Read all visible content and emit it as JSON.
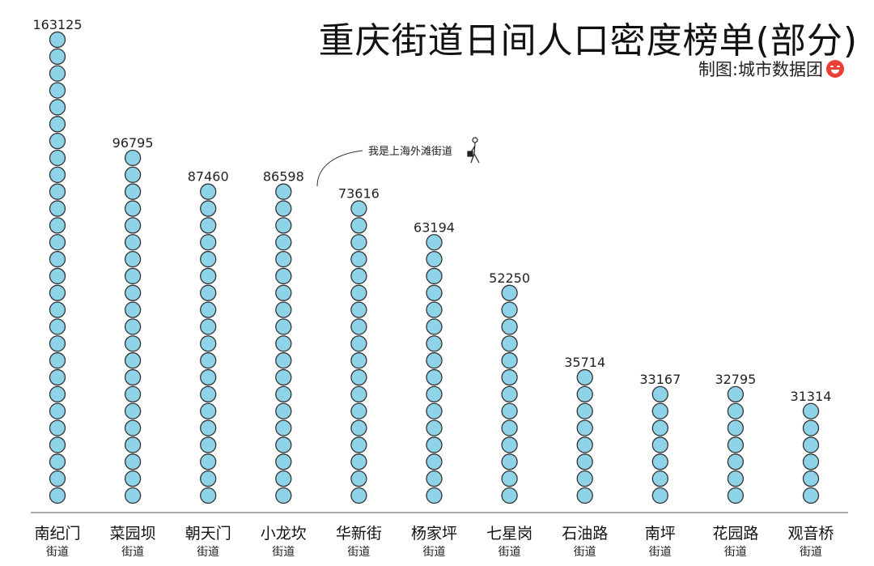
{
  "title": "重庆街道日间人口密度榜单(部分)",
  "credit": "制图:城市数据团",
  "annotation": "我是上海外滩街道",
  "colors": {
    "bead_fill": "#8fd3e8",
    "bead_stroke": "#333333",
    "logo": "#e8413a",
    "text": "#1a1a1a"
  },
  "chart_data": {
    "type": "bar",
    "style": "stacked circles (pictograph)",
    "title": "重庆街道日间人口密度榜单(部分)",
    "categories": [
      "南纪门",
      "菜园坝",
      "朝天门",
      "小龙坎",
      "华新街",
      "杨家坪",
      "七星岗",
      "石油路",
      "南坪",
      "花园路",
      "观音桥"
    ],
    "sublabel": "街道",
    "values": [
      163125,
      96795,
      87460,
      86598,
      73616,
      63194,
      52250,
      35714,
      33167,
      32795,
      31314
    ],
    "bead_counts": [
      28,
      21,
      19,
      19,
      18,
      16,
      13,
      8,
      7,
      7,
      6
    ],
    "grid": false,
    "legend": "none"
  }
}
